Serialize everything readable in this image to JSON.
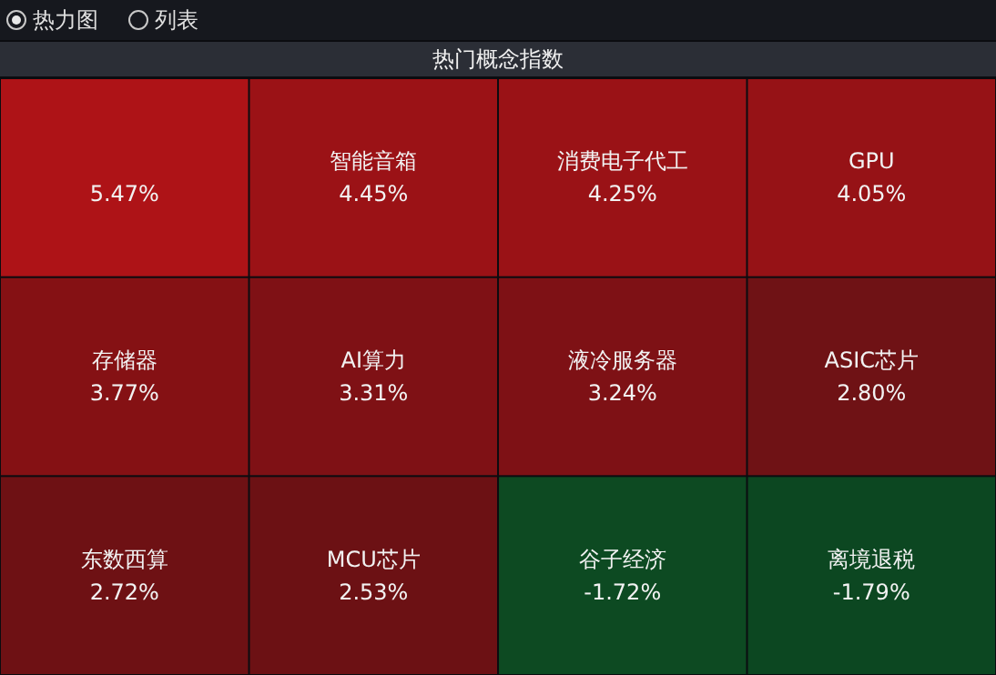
{
  "chart_data": {
    "type": "other",
    "title": "热门概念指数",
    "categories": [
      null,
      "智能音箱",
      "消费电子代工",
      "GPU",
      "存储器",
      "AI算力",
      "液冷服务器",
      "ASIC芯片",
      "东数西算",
      "MCU芯片",
      "谷子经济",
      "离境退税"
    ],
    "values": [
      5.47,
      4.45,
      4.25,
      4.05,
      3.77,
      3.31,
      3.24,
      2.8,
      2.72,
      2.53,
      -1.72,
      -1.79
    ],
    "value_labels": [
      "5.47%",
      "4.45%",
      "4.25%",
      "4.05%",
      "3.77%",
      "3.31%",
      "3.24%",
      "2.80%",
      "2.72%",
      "2.53%",
      "-1.72%",
      "-1.79%"
    ],
    "colors": [
      "#ae1317",
      "#9b1216",
      "#9a1216",
      "#961216",
      "#851114",
      "#7f1115",
      "#7e1115",
      "#6f1215",
      "#6e1114",
      "#6c1114",
      "#0d4a22",
      "#0c4721"
    ],
    "annotations": [
      "热力图",
      "列表"
    ]
  }
}
